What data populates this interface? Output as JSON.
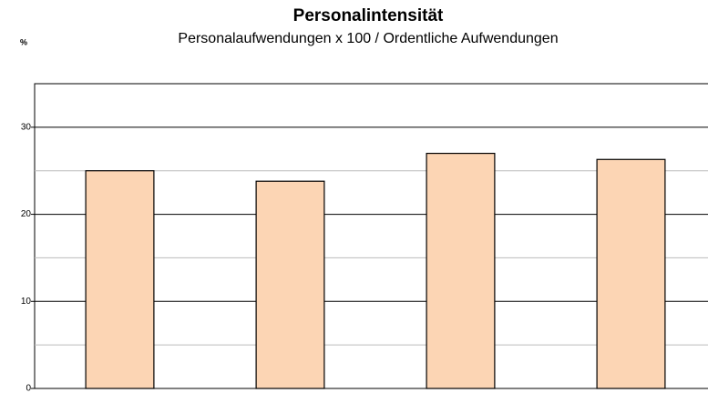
{
  "chart_data": {
    "type": "bar",
    "title": "Personalintensität",
    "subtitle": "Personalaufwendungen x 100 / Ordentliche Aufwendungen",
    "y_label": "%",
    "categories": [
      null,
      null,
      null,
      null
    ],
    "values": [
      25,
      23.8,
      27,
      26.3
    ],
    "color": "#fcd5b4",
    "ylim": [
      0,
      35
    ],
    "yticks": [
      0,
      10,
      20,
      30
    ],
    "minor_yticks": [
      5,
      15,
      25
    ],
    "grid": true
  }
}
